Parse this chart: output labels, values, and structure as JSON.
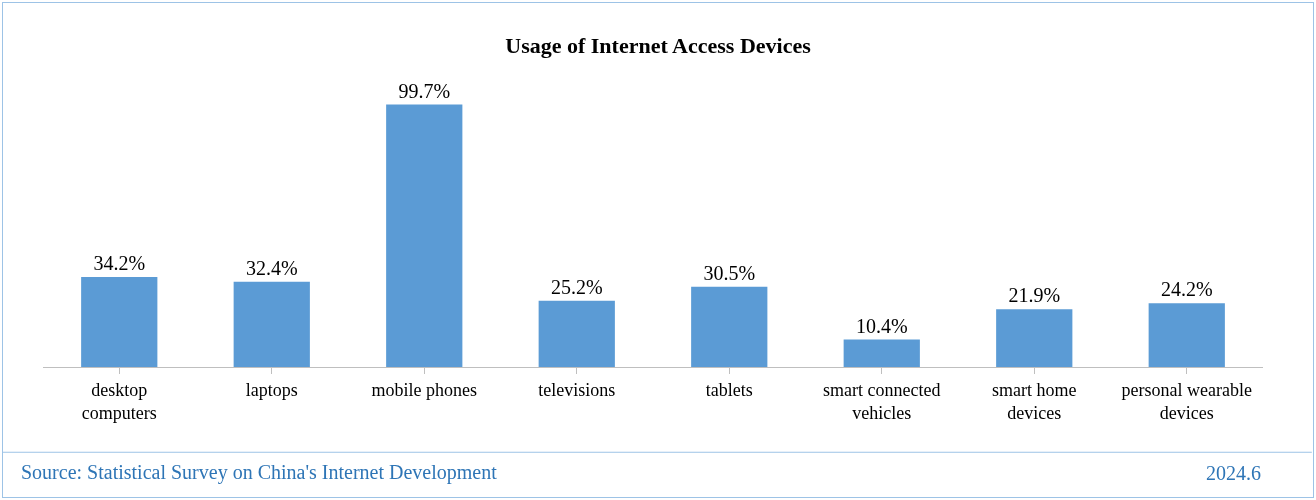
{
  "chart_data": {
    "type": "bar",
    "title": "Usage of Internet Access Devices",
    "categories": [
      "desktop computers",
      "laptops",
      "mobile phones",
      "televisions",
      "tablets",
      "smart connected vehicles",
      "smart home devices",
      "personal wearable devices"
    ],
    "values": [
      34.2,
      32.4,
      99.7,
      25.2,
      30.5,
      10.4,
      21.9,
      24.2
    ],
    "value_labels": [
      "34.2%",
      "32.4%",
      "99.7%",
      "25.2%",
      "30.5%",
      "10.4%",
      "21.9%",
      "24.2%"
    ],
    "color": "#5b9bd5",
    "legend": false,
    "annotations": [
      "Source: Statistical Survey on China's Internet Development",
      "2024.6"
    ]
  }
}
